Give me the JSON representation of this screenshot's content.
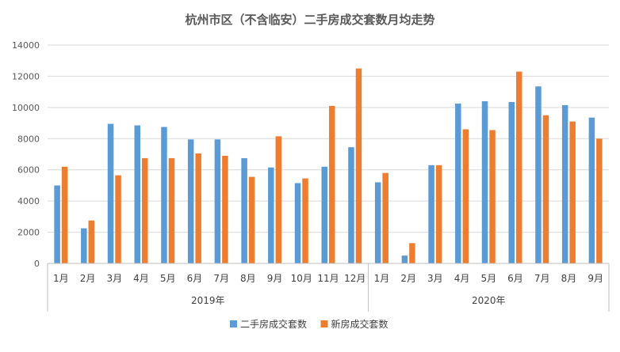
{
  "chart_data": {
    "type": "bar",
    "title": "杭州市区（不含临安）二手房成交套数月均走势",
    "ylim": [
      0,
      14000
    ],
    "yticks": [
      0,
      2000,
      4000,
      6000,
      8000,
      10000,
      12000,
      14000
    ],
    "grid": true,
    "legend_position": "bottom",
    "groups": [
      {
        "label": "2019年",
        "count": 12
      },
      {
        "label": "2020年",
        "count": 9
      }
    ],
    "categories": [
      "1月",
      "2月",
      "3月",
      "4月",
      "5月",
      "6月",
      "7月",
      "8月",
      "9月",
      "10月",
      "11月",
      "12月",
      "1月",
      "2月",
      "3月",
      "4月",
      "5月",
      "6月",
      "7月",
      "8月",
      "9月"
    ],
    "series": [
      {
        "name": "二手房成交套数",
        "color": "#5B9BD5",
        "values": [
          5000,
          2250,
          8950,
          8850,
          8750,
          7950,
          7950,
          6750,
          6150,
          5150,
          6200,
          7450,
          5200,
          500,
          6300,
          10250,
          10400,
          10350,
          11350,
          10150,
          9350
        ]
      },
      {
        "name": "新房成交套数",
        "color": "#ED7D31",
        "values": [
          6200,
          2750,
          5650,
          6750,
          6750,
          7050,
          6900,
          5550,
          8150,
          5450,
          10100,
          12500,
          5800,
          1300,
          6300,
          8600,
          8550,
          12300,
          9500,
          9100,
          8000
        ]
      }
    ]
  }
}
